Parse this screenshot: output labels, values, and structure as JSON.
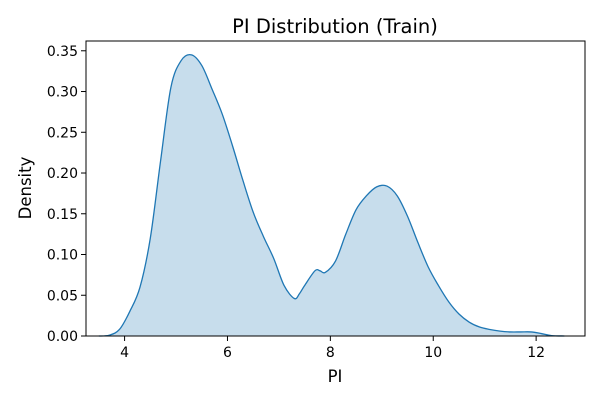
{
  "chart_data": {
    "type": "area",
    "title": "PI Distribution (Train)",
    "xlabel": "PI",
    "ylabel": "Density",
    "xlim": [
      3.25,
      12.95
    ],
    "ylim": [
      0,
      0.362
    ],
    "xticks": [
      4,
      6,
      8,
      10,
      12
    ],
    "yticks": [
      0.0,
      0.05,
      0.1,
      0.15,
      0.2,
      0.25,
      0.3,
      0.35
    ],
    "ytick_labels": [
      "0.00",
      "0.05",
      "0.10",
      "0.15",
      "0.20",
      "0.25",
      "0.30",
      "0.35"
    ],
    "grid": false,
    "series": [
      {
        "color": "#1f77b4",
        "fill_color": "#1f77b4",
        "fill_opacity": 0.25,
        "x": [
          3.5,
          3.7,
          3.9,
          4.1,
          4.3,
          4.5,
          4.7,
          4.9,
          5.1,
          5.3,
          5.5,
          5.7,
          5.9,
          6.1,
          6.3,
          6.5,
          6.7,
          6.9,
          7.1,
          7.3,
          7.4,
          7.5,
          7.7,
          7.8,
          7.9,
          8.1,
          8.3,
          8.5,
          8.7,
          8.9,
          9.1,
          9.3,
          9.5,
          9.7,
          9.9,
          10.1,
          10.3,
          10.5,
          10.7,
          10.9,
          11.1,
          11.3,
          11.5,
          11.7,
          11.9,
          12.1,
          12.3,
          12.55
        ],
        "y": [
          0.0,
          0.001,
          0.008,
          0.03,
          0.06,
          0.12,
          0.215,
          0.305,
          0.338,
          0.345,
          0.332,
          0.303,
          0.272,
          0.233,
          0.191,
          0.152,
          0.122,
          0.095,
          0.062,
          0.046,
          0.052,
          0.062,
          0.08,
          0.08,
          0.078,
          0.092,
          0.125,
          0.155,
          0.172,
          0.183,
          0.184,
          0.172,
          0.147,
          0.115,
          0.085,
          0.062,
          0.042,
          0.027,
          0.017,
          0.011,
          0.008,
          0.006,
          0.005,
          0.005,
          0.005,
          0.003,
          0.0005,
          0.0
        ]
      }
    ]
  }
}
